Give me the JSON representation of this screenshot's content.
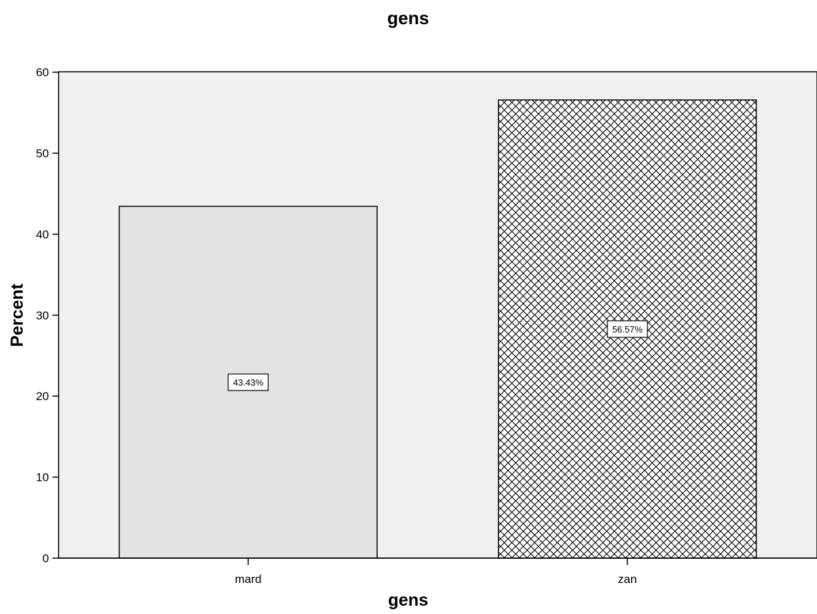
{
  "chart_data": {
    "type": "bar",
    "title": "gens",
    "xlabel": "gens",
    "ylabel": "Percent",
    "categories": [
      "mard",
      "zan"
    ],
    "values": [
      43.43,
      56.57
    ],
    "data_labels": [
      "43.43%",
      "56.57%"
    ],
    "bar_patterns": [
      "solid",
      "crosshatch"
    ],
    "ylim": [
      0,
      63
    ],
    "yticks": [
      0,
      10,
      20,
      30,
      40,
      50,
      60
    ],
    "grid": false,
    "legend": "none",
    "colors": {
      "plot_background": "#f0f0f0",
      "bar_fill": "#e3e3e3",
      "hatch": "#000000",
      "outline": "#000000"
    }
  }
}
